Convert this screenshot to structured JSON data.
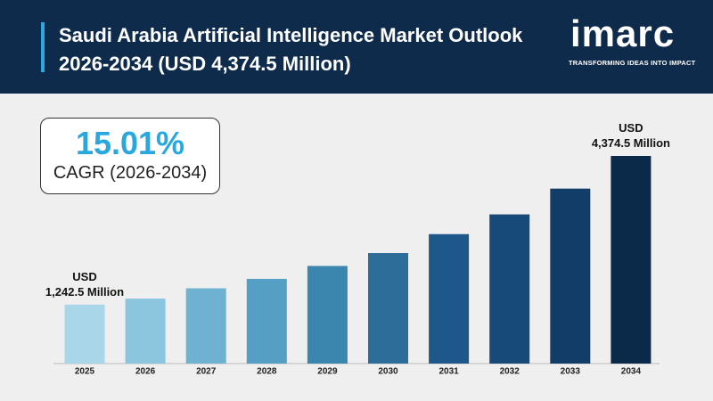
{
  "header": {
    "title": "Saudi Arabia Artificial Intelligence Market Outlook 2026-2034 (USD 4,374.5 Million)",
    "logo": "imarc",
    "tagline": "TRANSFORMING IDEAS INTO IMPACT"
  },
  "chart_data": {
    "type": "bar",
    "categories": [
      "2025",
      "2026",
      "2027",
      "2028",
      "2029",
      "2030",
      "2031",
      "2032",
      "2033",
      "2034"
    ],
    "values": [
      1242.5,
      1369,
      1586,
      1785,
      2057,
      2328,
      2727,
      3143,
      3686,
      4374.5
    ],
    "value_labels": [
      "USD\n1,242.5 Million",
      null,
      null,
      null,
      null,
      null,
      null,
      null,
      null,
      "USD\n4,374.5 Million"
    ],
    "colors": [
      "#a9d6e8",
      "#8cc5de",
      "#6eb1d1",
      "#549fc3",
      "#3a86ae",
      "#2c6e99",
      "#1e5789",
      "#174a79",
      "#113d68",
      "#0b2a4a"
    ],
    "annotations": {
      "cagr_value": "15.01%",
      "cagr_label": "CAGR (2026-2034)"
    }
  }
}
